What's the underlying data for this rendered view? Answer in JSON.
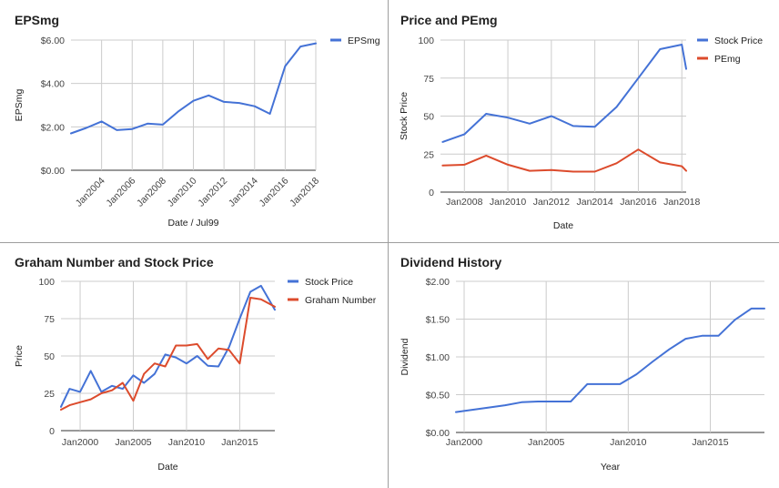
{
  "chart_data": [
    {
      "type": "line",
      "title": "EPSmg",
      "xlabel": "Date / Jul99",
      "ylabel": "EPSmg",
      "x_ticks": [
        "Jan2004",
        "Jan2006",
        "Jan2008",
        "Jan2010",
        "Jan2012",
        "Jan2014",
        "Jan2016",
        "Jan2018"
      ],
      "x_tick_years": [
        2004,
        2006,
        2008,
        2010,
        2012,
        2014,
        2016,
        2018
      ],
      "x_tick_rotation": -45,
      "y_ticks": [
        "$0.00",
        "$2.00",
        "$4.00",
        "$6.00"
      ],
      "y_tick_values": [
        0,
        2,
        4,
        6
      ],
      "xlim": [
        2002,
        2018
      ],
      "ylim": [
        0,
        6
      ],
      "grid": true,
      "legend": "right",
      "x": [
        2002,
        2003,
        2004,
        2005,
        2006,
        2007,
        2008,
        2009,
        2010,
        2011,
        2012,
        2013,
        2014,
        2015,
        2016,
        2017,
        2018
      ],
      "series": [
        {
          "name": "EPSmg",
          "color": "#4472d6",
          "values": [
            1.7,
            1.95,
            2.25,
            1.85,
            1.9,
            2.15,
            2.1,
            2.7,
            3.2,
            3.45,
            3.15,
            3.1,
            2.95,
            2.6,
            4.8,
            5.7,
            5.85
          ]
        }
      ]
    },
    {
      "type": "line",
      "title": "Price and PEmg",
      "xlabel": "Date",
      "ylabel": "Stock Price",
      "x_ticks": [
        "Jan2008",
        "Jan2010",
        "Jan2012",
        "Jan2014",
        "Jan2016",
        "Jan2018"
      ],
      "x_tick_years": [
        2008,
        2010,
        2012,
        2014,
        2016,
        2018
      ],
      "y_ticks": [
        "0",
        "25",
        "50",
        "75",
        "100"
      ],
      "y_tick_values": [
        0,
        25,
        50,
        75,
        100
      ],
      "xlim": [
        2006.9,
        2018.2
      ],
      "ylim": [
        0,
        100
      ],
      "grid": true,
      "legend": "right",
      "x": [
        2007,
        2008,
        2009,
        2010,
        2011,
        2012,
        2013,
        2014,
        2015,
        2016,
        2017,
        2018,
        2018.2
      ],
      "series": [
        {
          "name": "Stock Price",
          "color": "#4472d6",
          "values": [
            33,
            38,
            51.5,
            49,
            45,
            50,
            43.5,
            43,
            56,
            75,
            94,
            97,
            81
          ]
        },
        {
          "name": "PEmg",
          "color": "#dc4b2c",
          "values": [
            17.5,
            18,
            24,
            18,
            14,
            14.5,
            13.5,
            13.5,
            19,
            28,
            19.5,
            17,
            14
          ]
        }
      ]
    },
    {
      "type": "line",
      "title": "Graham Number and Stock Price",
      "xlabel": "Date",
      "ylabel": "Price",
      "x_ticks": [
        "Jan2000",
        "Jan2005",
        "Jan2010",
        "Jan2015"
      ],
      "x_tick_years": [
        2000,
        2005,
        2010,
        2015
      ],
      "y_ticks": [
        "0",
        "25",
        "50",
        "75",
        "100"
      ],
      "y_tick_values": [
        0,
        25,
        50,
        75,
        100
      ],
      "xlim": [
        1998.2,
        2018.3
      ],
      "ylim": [
        0,
        100
      ],
      "grid": true,
      "legend": "right",
      "x": [
        1998.2,
        1999,
        2000,
        2001,
        2002,
        2003,
        2004,
        2005,
        2006,
        2007,
        2008,
        2009,
        2010,
        2011,
        2012,
        2013,
        2014,
        2015,
        2016,
        2017,
        2018.3
      ],
      "series": [
        {
          "name": "Stock Price",
          "color": "#4472d6",
          "values": [
            16,
            28,
            26,
            40,
            26,
            30,
            28,
            37,
            32,
            38,
            51,
            49,
            45,
            50,
            43.5,
            43,
            56,
            75,
            93,
            97,
            81
          ]
        },
        {
          "name": "Graham Number",
          "color": "#dc4b2c",
          "values": [
            14,
            17,
            19,
            21,
            25,
            27,
            32,
            20,
            38,
            45,
            43,
            57,
            57,
            58,
            48,
            55,
            54,
            45,
            89,
            88,
            83
          ]
        }
      ]
    },
    {
      "type": "line",
      "title": "Dividend History",
      "xlabel": "Year",
      "ylabel": "Dividend",
      "x_ticks": [
        "Jan2000",
        "Jan2005",
        "Jan2010",
        "Jan2015"
      ],
      "x_tick_years": [
        2000,
        2005,
        2010,
        2015
      ],
      "y_ticks": [
        "$0.00",
        "$0.50",
        "$1.00",
        "$1.50",
        "$2.00"
      ],
      "y_tick_values": [
        0,
        0.5,
        1,
        1.5,
        2
      ],
      "xlim": [
        1999.5,
        2018.3
      ],
      "ylim": [
        0,
        2
      ],
      "grid": true,
      "legend": "none",
      "x": [
        1999.5,
        2000.5,
        2001.5,
        2002.5,
        2003.5,
        2004.5,
        2005.5,
        2006.5,
        2007.5,
        2008.5,
        2009.5,
        2010.5,
        2011.5,
        2012.5,
        2013.5,
        2014.5,
        2015.5,
        2016.5,
        2017.5,
        2018.3
      ],
      "series": [
        {
          "name": "",
          "color": "#4472d6",
          "values": [
            0.27,
            0.3,
            0.33,
            0.36,
            0.4,
            0.41,
            0.41,
            0.41,
            0.64,
            0.64,
            0.64,
            0.77,
            0.94,
            1.1,
            1.24,
            1.28,
            1.28,
            1.49,
            1.64,
            1.64
          ]
        }
      ]
    }
  ]
}
